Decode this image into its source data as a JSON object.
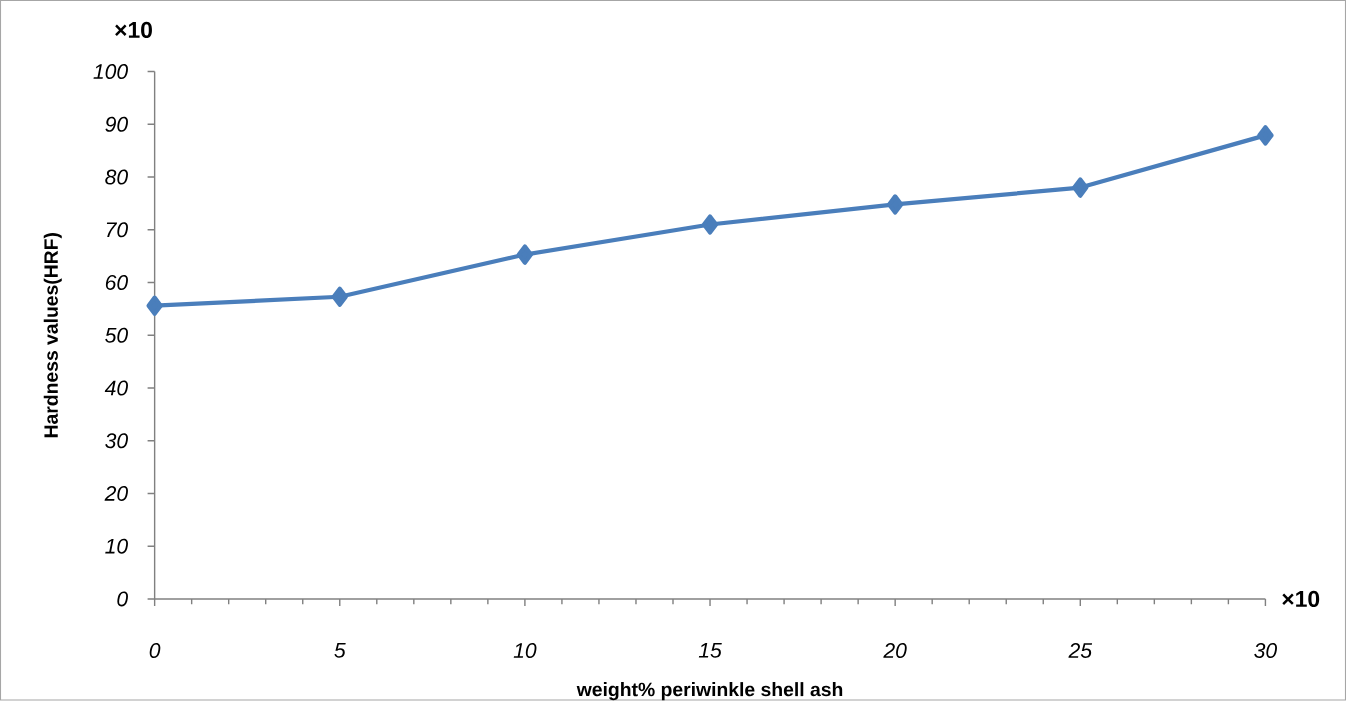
{
  "chart_data": {
    "type": "line",
    "xlabel": "weight% periwinkle shell ash",
    "ylabel": "Hardness values(HRF)",
    "x": [
      0,
      5,
      10,
      15,
      20,
      25,
      30
    ],
    "series": [
      {
        "color": "#4a7ebb",
        "values": [
          55.6,
          57.3,
          65.3,
          71.0,
          74.8,
          78.0,
          87.9
        ]
      }
    ],
    "xlim": [
      0,
      30
    ],
    "xticks": [
      0,
      5,
      10,
      15,
      20,
      25,
      30
    ],
    "ylim": [
      0,
      100
    ],
    "yticks": [
      0,
      10,
      20,
      30,
      40,
      50,
      60,
      70,
      80,
      90,
      100
    ],
    "marker": "diamond",
    "line_style": "solid",
    "grid": false,
    "annotations": [
      "×10",
      "×10"
    ]
  }
}
